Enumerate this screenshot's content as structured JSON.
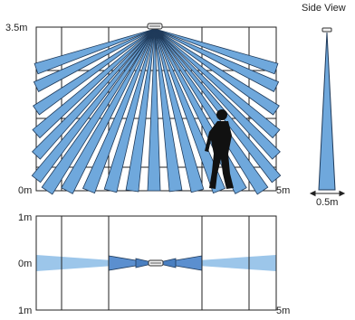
{
  "top_view": {
    "label_top": "3.5m",
    "label_bottom": "0m",
    "label_right": "5m"
  },
  "side_view": {
    "title": "Side View",
    "width_label": "0.5m"
  },
  "floor_view": {
    "label_top": "1m",
    "label_middle": "0m",
    "label_bottom": "1m",
    "label_right": "5m"
  },
  "colors": {
    "beam_fill": "#6fa8dc",
    "beam_stroke": "#1f3a5a",
    "floor_beam_fill": "#9cc6ea",
    "floor_beam_dark": "#5b8fcf",
    "grid_line": "#222222",
    "silhouette": "#111111"
  },
  "icons": {
    "sensor": "sensor-icon",
    "person": "walking-person-icon"
  }
}
